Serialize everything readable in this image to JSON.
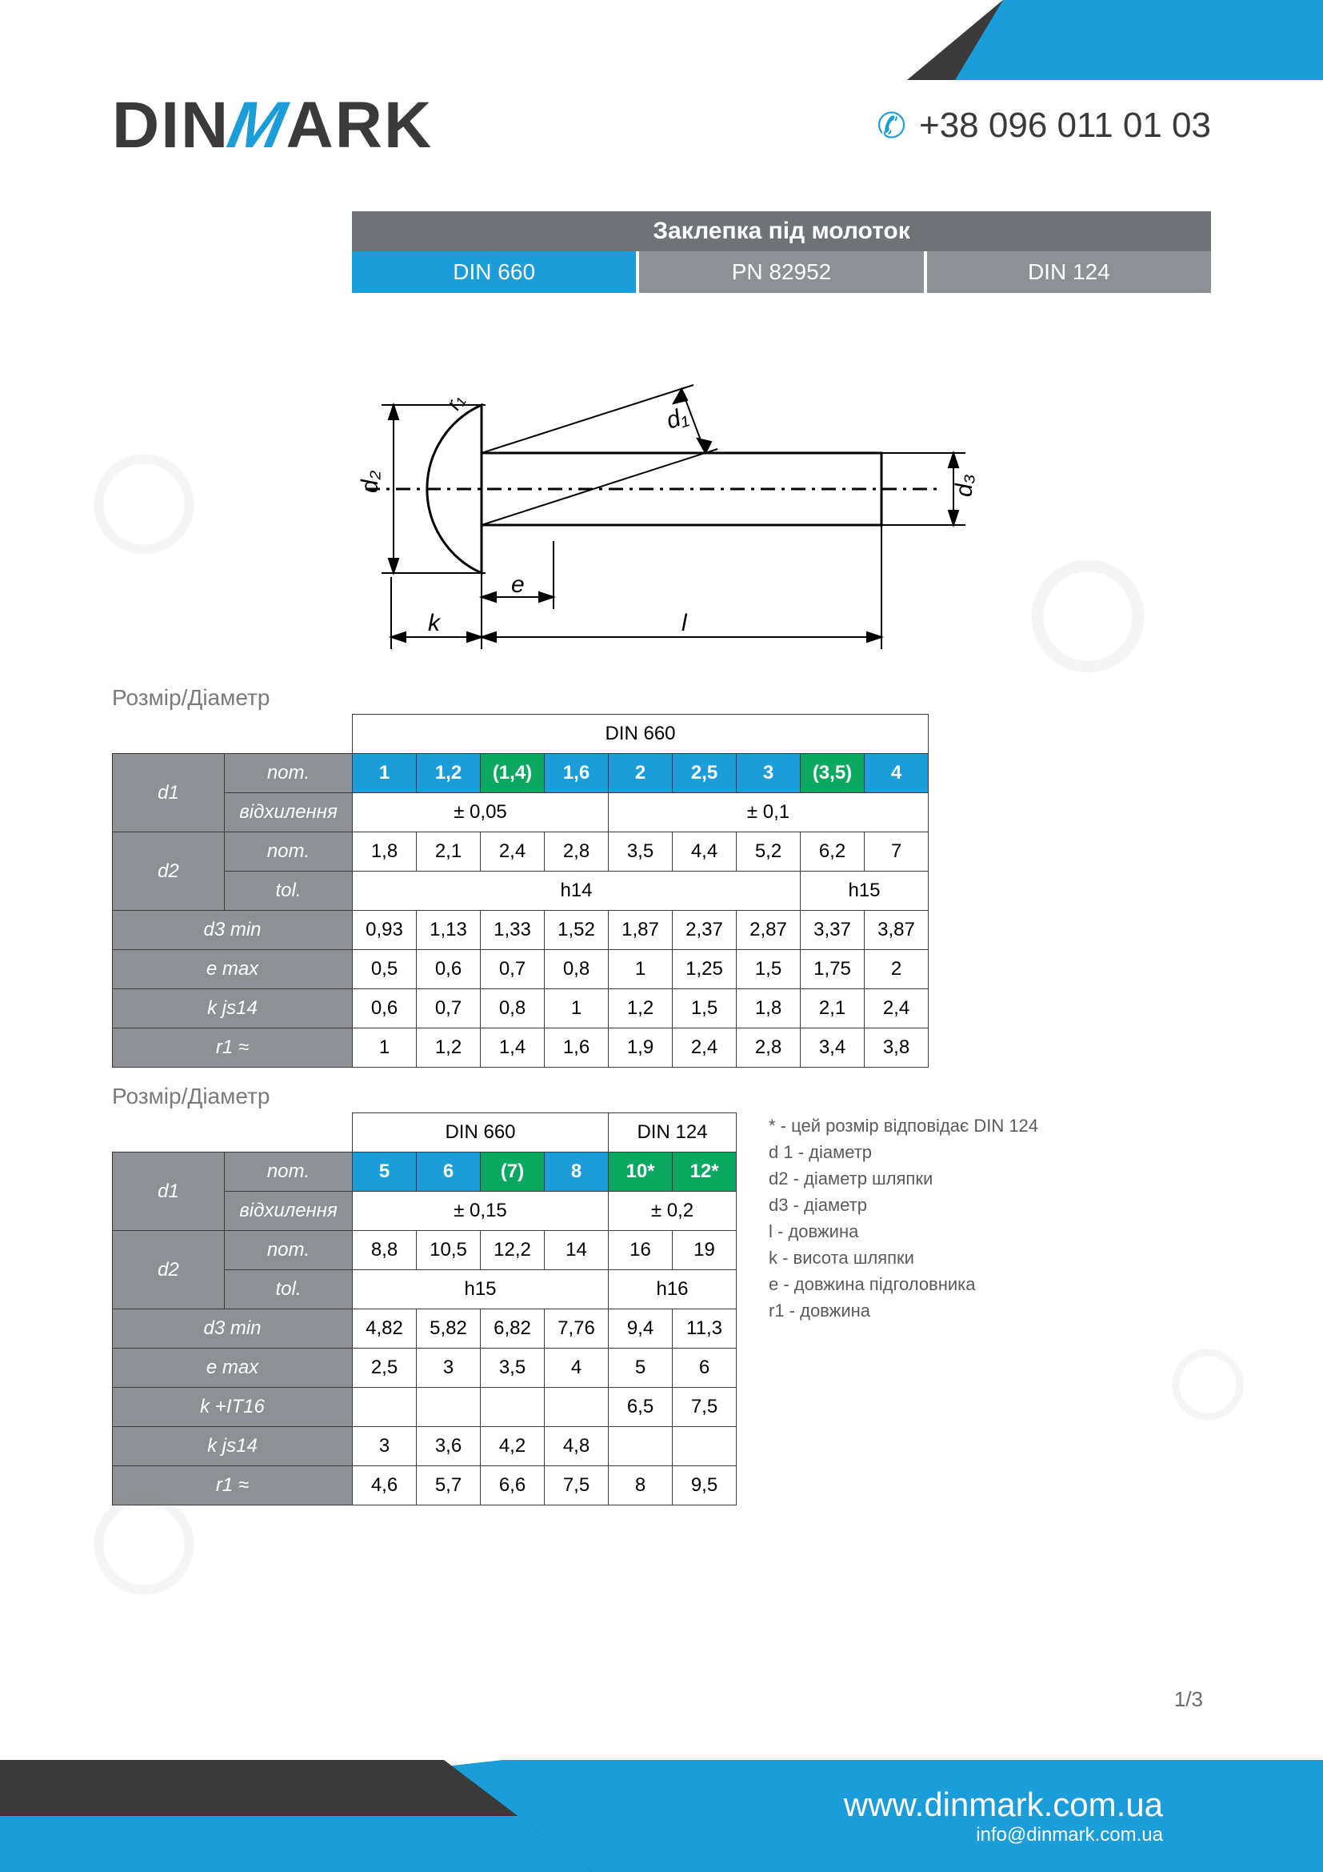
{
  "brand": {
    "pre": "DIN",
    "m": "M",
    "post": "ARK"
  },
  "phone": "+38 096 011 01 03",
  "title": "Заклепка під молоток",
  "tabs": [
    {
      "label": "DIN 660",
      "active": true
    },
    {
      "label": "PN 82952",
      "active": false
    },
    {
      "label": "DIN 124",
      "active": false
    }
  ],
  "diagram": {
    "labels": {
      "d2": "d₂",
      "d1": "d₁",
      "d3": "d₃",
      "r1": "r₁",
      "e": "e",
      "k": "k",
      "l": "l"
    }
  },
  "section_label": "Розмір/Діаметр",
  "table1": {
    "std_header": "DIN 660",
    "rows": {
      "d1": {
        "label": "d1",
        "nom_label": "nom.",
        "dev_label": "відхилення"
      },
      "d2": {
        "label": "d2",
        "nom_label": "nom.",
        "tol_label": "tol."
      },
      "d3min": "d3 min",
      "emax": "e max",
      "kjs14": "k js14",
      "r1": "r1 ≈"
    },
    "d1_nom": [
      "1",
      "1,2",
      "(1,4)",
      "1,6",
      "2",
      "2,5",
      "3",
      "(3,5)",
      "4"
    ],
    "d1_nom_green": [
      false,
      false,
      true,
      false,
      false,
      false,
      false,
      true,
      false
    ],
    "d1_dev": [
      {
        "span": 4,
        "val": "± 0,05"
      },
      {
        "span": 5,
        "val": "± 0,1"
      }
    ],
    "d2_nom": [
      "1,8",
      "2,1",
      "2,4",
      "2,8",
      "3,5",
      "4,4",
      "5,2",
      "6,2",
      "7"
    ],
    "d2_tol": [
      {
        "span": 7,
        "val": "h14"
      },
      {
        "span": 2,
        "val": "h15"
      }
    ],
    "d3min": [
      "0,93",
      "1,13",
      "1,33",
      "1,52",
      "1,87",
      "2,37",
      "2,87",
      "3,37",
      "3,87"
    ],
    "emax": [
      "0,5",
      "0,6",
      "0,7",
      "0,8",
      "1",
      "1,25",
      "1,5",
      "1,75",
      "2"
    ],
    "kjs14": [
      "0,6",
      "0,7",
      "0,8",
      "1",
      "1,2",
      "1,5",
      "1,8",
      "2,1",
      "2,4"
    ],
    "r1": [
      "1",
      "1,2",
      "1,4",
      "1,6",
      "1,9",
      "2,4",
      "2,8",
      "3,4",
      "3,8"
    ]
  },
  "table2": {
    "std_headers": [
      {
        "span": 4,
        "val": "DIN 660"
      },
      {
        "span": 2,
        "val": "DIN 124"
      }
    ],
    "rows": {
      "d1": {
        "label": "d1",
        "nom_label": "nom.",
        "dev_label": "відхилення"
      },
      "d2": {
        "label": "d2",
        "nom_label": "nom.",
        "tol_label": "tol."
      },
      "d3min": "d3 min",
      "emax": "e max",
      "kit16": "k +IT16",
      "kjs14": "k js14",
      "r1": "r1 ≈"
    },
    "d1_nom": [
      "5",
      "6",
      "(7)",
      "8",
      "10*",
      "12*"
    ],
    "d1_nom_green": [
      false,
      false,
      true,
      false,
      true,
      true
    ],
    "d1_dev": [
      {
        "span": 4,
        "val": "± 0,15"
      },
      {
        "span": 2,
        "val": "± 0,2"
      }
    ],
    "d2_nom": [
      "8,8",
      "10,5",
      "12,2",
      "14",
      "16",
      "19"
    ],
    "d2_tol": [
      {
        "span": 4,
        "val": "h15"
      },
      {
        "span": 2,
        "val": "h16"
      }
    ],
    "d3min": [
      "4,82",
      "5,82",
      "6,82",
      "7,76",
      "9,4",
      "11,3"
    ],
    "emax": [
      "2,5",
      "3",
      "3,5",
      "4",
      "5",
      "6"
    ],
    "kit16": [
      "",
      "",
      "",
      "",
      "6,5",
      "7,5"
    ],
    "kjs14": [
      "3",
      "3,6",
      "4,2",
      "4,8",
      "",
      ""
    ],
    "r1": [
      "4,6",
      "5,7",
      "6,6",
      "7,5",
      "8",
      "9,5"
    ]
  },
  "legend": [
    "* - цей розмір відповідає DIN 124",
    "d 1 -  діаметр",
    "d2 - діаметр шляпки",
    "d3 - діаметр",
    "l - довжина",
    "k - висота шляпки",
    "e - довжина підголовника",
    "r1 - довжина"
  ],
  "footer": {
    "url": "www.dinmark.com.ua",
    "email": "info@dinmark.com.ua"
  },
  "page": "1/3"
}
